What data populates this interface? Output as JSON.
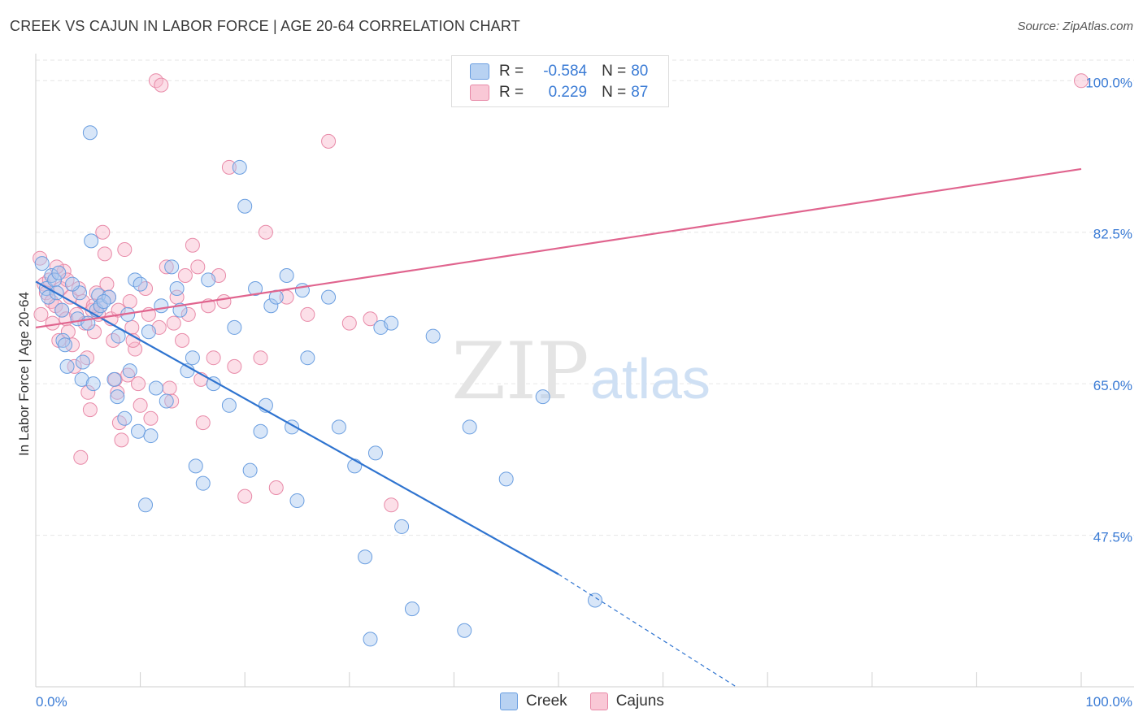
{
  "title": "CREEK VS CAJUN IN LABOR FORCE | AGE 20-64 CORRELATION CHART",
  "source": "Source: ZipAtlas.com",
  "watermark_zip": "ZIP",
  "watermark_atlas": "atlas",
  "legend": {
    "series": [
      {
        "r_label": "R =",
        "r_value": "-0.584",
        "n_label": "N =",
        "n_value": "80"
      },
      {
        "r_label": "R =",
        "r_value": "0.229",
        "n_label": "N =",
        "n_value": "87"
      }
    ]
  },
  "bottom_legend": [
    "Creek",
    "Cajuns"
  ],
  "colors": {
    "creek_fill": "#a8c8f0",
    "creek_stroke": "#6a9ee0",
    "creek_line": "#2f74d0",
    "cajun_fill": "#f8b8cc",
    "cajun_stroke": "#e88aa8",
    "cajun_line": "#e0648e",
    "grid": "#e6e6e6",
    "tick_label": "#3a7bd5"
  },
  "chart_data": {
    "type": "scatter",
    "title": "CREEK VS CAJUN IN LABOR FORCE | AGE 20-64 CORRELATION CHART",
    "xlabel": "",
    "ylabel": "In Labor Force | Age 20-64",
    "xlim": [
      0,
      100
    ],
    "ylim": [
      30,
      102
    ],
    "x_tick_labels": [
      "0.0%",
      "100.0%"
    ],
    "y_ticks": [
      47.5,
      65.0,
      82.5,
      100.0
    ],
    "y_tick_labels": [
      "47.5%",
      "65.0%",
      "82.5%",
      "100.0%"
    ],
    "series": [
      {
        "name": "Creek",
        "r": -0.584,
        "n": 80,
        "trend": {
          "x0": 0,
          "y0": 76.8,
          "x1": 50,
          "y1": 43.0,
          "dash_to_x": 67,
          "dash_to_y": 30.0
        },
        "points": [
          [
            0.6,
            78.9
          ],
          [
            1.0,
            76.0
          ],
          [
            1.2,
            75.0
          ],
          [
            1.5,
            77.5
          ],
          [
            1.8,
            77.0
          ],
          [
            2.2,
            77.8
          ],
          [
            2.5,
            73.5
          ],
          [
            2.6,
            70.0
          ],
          [
            2.8,
            69.5
          ],
          [
            3.0,
            67.0
          ],
          [
            4.0,
            72.5
          ],
          [
            4.2,
            75.5
          ],
          [
            4.5,
            67.5
          ],
          [
            4.4,
            65.5
          ],
          [
            5.0,
            72.0
          ],
          [
            5.5,
            65.0
          ],
          [
            5.8,
            73.5
          ],
          [
            6.0,
            75.2
          ],
          [
            5.3,
            81.5
          ],
          [
            6.2,
            74.0
          ],
          [
            7.0,
            75.0
          ],
          [
            7.5,
            65.5
          ],
          [
            7.8,
            63.5
          ],
          [
            7.9,
            70.5
          ],
          [
            8.5,
            61.0
          ],
          [
            8.8,
            73.0
          ],
          [
            9.5,
            77.0
          ],
          [
            9.8,
            59.5
          ],
          [
            10.0,
            76.5
          ],
          [
            10.8,
            71.0
          ],
          [
            11.0,
            59.0
          ],
          [
            11.5,
            64.5
          ],
          [
            12.0,
            74.0
          ],
          [
            13.0,
            78.5
          ],
          [
            13.5,
            76.0
          ],
          [
            14.5,
            66.5
          ],
          [
            15.0,
            68.0
          ],
          [
            15.3,
            55.5
          ],
          [
            16.0,
            53.5
          ],
          [
            16.5,
            77.0
          ],
          [
            17.0,
            65.0
          ],
          [
            18.5,
            62.5
          ],
          [
            19.0,
            71.5
          ],
          [
            19.5,
            90.0
          ],
          [
            20.0,
            85.5
          ],
          [
            20.5,
            55.0
          ],
          [
            21.0,
            76.0
          ],
          [
            21.5,
            59.5
          ],
          [
            22.0,
            62.5
          ],
          [
            22.5,
            74.0
          ],
          [
            23.0,
            75.0
          ],
          [
            24.0,
            77.5
          ],
          [
            24.5,
            60.0
          ],
          [
            25.0,
            51.5
          ],
          [
            26.0,
            68.0
          ],
          [
            28.0,
            75.0
          ],
          [
            29.0,
            60.0
          ],
          [
            30.5,
            55.5
          ],
          [
            31.5,
            45.0
          ],
          [
            32.0,
            35.5
          ],
          [
            32.5,
            57.0
          ],
          [
            33.0,
            71.5
          ],
          [
            34.0,
            72.0
          ],
          [
            35.0,
            48.5
          ],
          [
            36.0,
            39.0
          ],
          [
            38.0,
            70.5
          ],
          [
            41.0,
            36.5
          ],
          [
            41.5,
            60.0
          ],
          [
            45.0,
            54.0
          ],
          [
            48.5,
            63.5
          ],
          [
            53.5,
            40.0
          ],
          [
            5.2,
            94.0
          ],
          [
            3.5,
            76.5
          ],
          [
            2.0,
            75.5
          ],
          [
            6.5,
            74.5
          ],
          [
            9.0,
            66.5
          ],
          [
            10.5,
            51.0
          ],
          [
            13.8,
            73.5
          ],
          [
            12.5,
            63.0
          ],
          [
            25.5,
            75.8
          ]
        ]
      },
      {
        "name": "Cajuns",
        "r": 0.229,
        "n": 87,
        "trend": {
          "x0": 0,
          "y0": 71.5,
          "x1": 100,
          "y1": 89.8
        },
        "points": [
          [
            0.4,
            79.5
          ],
          [
            0.5,
            73.0
          ],
          [
            0.8,
            76.5
          ],
          [
            1.0,
            75.5
          ],
          [
            1.3,
            77.0
          ],
          [
            1.5,
            74.5
          ],
          [
            1.6,
            72.0
          ],
          [
            1.9,
            74.0
          ],
          [
            2.2,
            70.0
          ],
          [
            2.4,
            76.0
          ],
          [
            2.5,
            73.5
          ],
          [
            2.7,
            78.0
          ],
          [
            2.9,
            72.5
          ],
          [
            3.1,
            71.0
          ],
          [
            3.3,
            75.0
          ],
          [
            3.5,
            69.5
          ],
          [
            3.7,
            67.0
          ],
          [
            3.9,
            73.0
          ],
          [
            4.1,
            76.0
          ],
          [
            4.3,
            56.5
          ],
          [
            4.5,
            74.5
          ],
          [
            4.7,
            72.0
          ],
          [
            4.9,
            68.0
          ],
          [
            5.0,
            64.0
          ],
          [
            5.2,
            62.0
          ],
          [
            5.4,
            73.5
          ],
          [
            5.6,
            71.0
          ],
          [
            5.8,
            75.5
          ],
          [
            6.0,
            73.0
          ],
          [
            6.2,
            74.0
          ],
          [
            6.4,
            82.5
          ],
          [
            6.6,
            80.0
          ],
          [
            6.8,
            76.5
          ],
          [
            7.0,
            75.0
          ],
          [
            7.2,
            72.5
          ],
          [
            7.4,
            70.0
          ],
          [
            7.6,
            65.5
          ],
          [
            7.8,
            64.0
          ],
          [
            8.0,
            60.5
          ],
          [
            8.2,
            58.5
          ],
          [
            8.5,
            80.5
          ],
          [
            8.8,
            66.0
          ],
          [
            9.0,
            74.5
          ],
          [
            9.2,
            71.5
          ],
          [
            9.5,
            69.0
          ],
          [
            9.8,
            65.0
          ],
          [
            10.0,
            62.5
          ],
          [
            10.5,
            76.0
          ],
          [
            10.8,
            73.0
          ],
          [
            11.0,
            61.0
          ],
          [
            11.5,
            100.0
          ],
          [
            12.0,
            99.5
          ],
          [
            12.5,
            78.5
          ],
          [
            12.8,
            64.5
          ],
          [
            13.0,
            63.0
          ],
          [
            13.5,
            75.0
          ],
          [
            14.0,
            70.0
          ],
          [
            14.3,
            77.5
          ],
          [
            14.6,
            73.0
          ],
          [
            15.0,
            81.0
          ],
          [
            15.5,
            78.5
          ],
          [
            15.8,
            65.5
          ],
          [
            16.0,
            60.5
          ],
          [
            16.5,
            74.0
          ],
          [
            17.0,
            68.0
          ],
          [
            17.5,
            77.5
          ],
          [
            18.0,
            74.5
          ],
          [
            18.5,
            90.0
          ],
          [
            19.0,
            67.0
          ],
          [
            20.0,
            52.0
          ],
          [
            21.5,
            68.0
          ],
          [
            22.0,
            82.5
          ],
          [
            23.0,
            53.0
          ],
          [
            24.0,
            75.0
          ],
          [
            26.0,
            73.0
          ],
          [
            28.0,
            93.0
          ],
          [
            30.0,
            72.0
          ],
          [
            32.0,
            72.5
          ],
          [
            34.0,
            51.0
          ],
          [
            100.0,
            100.0
          ],
          [
            2.0,
            78.5
          ],
          [
            3.0,
            77.0
          ],
          [
            5.5,
            74.0
          ],
          [
            7.9,
            73.5
          ],
          [
            9.3,
            70.0
          ],
          [
            11.8,
            71.5
          ],
          [
            13.2,
            72.0
          ]
        ]
      }
    ]
  }
}
